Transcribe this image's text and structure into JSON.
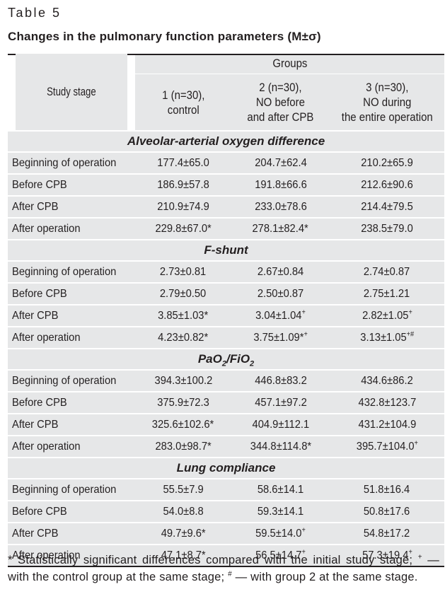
{
  "caption": "Table 5",
  "title": "Changes in the pulmonary function parameters (M±σ)",
  "header": {
    "study_stage": "Study stage",
    "groups": "Groups",
    "group1_line1": "1 (n=30),",
    "group1_line2": "control",
    "group2_line1": "2 (n=30),",
    "group2_line2": "NO before",
    "group2_line3": "and after CPB",
    "group3_line1": "3 (n=30),",
    "group3_line2": "NO during",
    "group3_line3": "the entire operation"
  },
  "sections": [
    {
      "title": "Alveolar-arterial oxygen difference",
      "rows": [
        {
          "stage": "Beginning of operation",
          "g1": "177.4±65.0",
          "g2": "204.7±62.4",
          "g3": "210.2±65.9"
        },
        {
          "stage": "Before CPB",
          "g1": "186.9±57.8",
          "g2": "191.8±66.6",
          "g3": "212.6±90.6"
        },
        {
          "stage": "After CPB",
          "g1": "210.9±74.9",
          "g2": "233.0±78.6",
          "g3": "214.4±79.5"
        },
        {
          "stage": "After operation",
          "g1": "229.8±67.0*",
          "g2": "278.1±82.4*",
          "g3": "238.5±79.0"
        }
      ]
    },
    {
      "title": "F-shunt",
      "rows": [
        {
          "stage": "Beginning of operation",
          "g1": "2.73±0.81",
          "g2": "2.67±0.84",
          "g3": "2.74±0.87"
        },
        {
          "stage": "Before CPB",
          "g1": "2.79±0.50",
          "g2": "2.50±0.87",
          "g3": "2.75±1.21"
        },
        {
          "stage": "After CPB",
          "g1": "3.85±1.03*",
          "g2": "3.04±1.04⁺",
          "g3": "2.82±1.05⁺"
        },
        {
          "stage": "After operation",
          "g1": "4.23±0.82*",
          "g2": "3.75±1.09*⁺",
          "g3": "3.13±1.05⁺#"
        }
      ]
    },
    {
      "title": "PaO2/FiO2",
      "rows": [
        {
          "stage": "Beginning of operation",
          "g1": "394.3±100.2",
          "g2": "446.8±83.2",
          "g3": "434.6±86.2"
        },
        {
          "stage": "Before CPB",
          "g1": "375.9±72.3",
          "g2": "457.1±97.2",
          "g3": "432.8±123.7"
        },
        {
          "stage": "After CPB",
          "g1": "325.6±102.6*",
          "g2": "404.9±112.1",
          "g3": "431.2±104.9"
        },
        {
          "stage": "After operation",
          "g1": "283.0±98.7*",
          "g2": "344.8±114.8*",
          "g3": "395.7±104.0⁺"
        }
      ]
    },
    {
      "title": "Lung compliance",
      "rows": [
        {
          "stage": "Beginning of operation",
          "g1": "55.5±7.9",
          "g2": "58.6±14.1",
          "g3": "51.8±16.4"
        },
        {
          "stage": "Before CPB",
          "g1": "54.0±8.8",
          "g2": "59.3±14.1",
          "g3": "50.8±17.6"
        },
        {
          "stage": "After CPB",
          "g1": "49.7±9.6*",
          "g2": "59.5±14.0⁺",
          "g3": "54.8±17.2"
        },
        {
          "stage": "After operation",
          "g1": "47.1±8.7*",
          "g2": "56.5±14.7⁺",
          "g3": "57.3±19.4⁺"
        }
      ]
    }
  ],
  "footnote": "* Statistically significant differences compared with the initial study stage; ⁺ — with the control group at the same stage; # — with group 2 at the same stage.",
  "colors": {
    "shade": "#e6e7e8",
    "text": "#231f20",
    "rule": "#231f20"
  }
}
